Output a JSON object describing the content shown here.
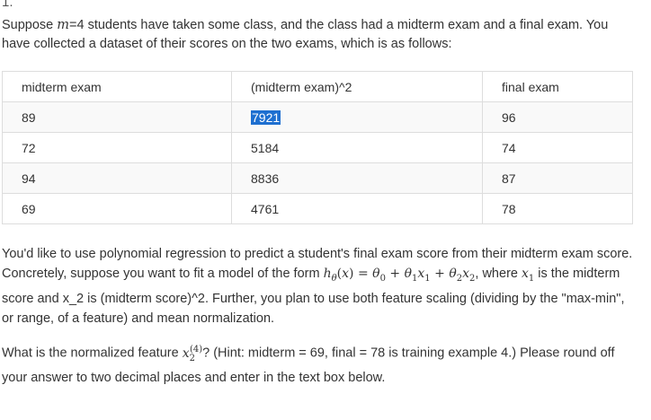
{
  "question": {
    "number": "1.",
    "intro_before_m": "Suppose ",
    "m_var": "m",
    "intro_after_m": "=4 students have taken some class, and the class had a midterm exam and a final exam. You have collected a dataset of their scores on the two exams, which is as follows:"
  },
  "table": {
    "headers": [
      "midterm exam",
      "(midterm exam)^2",
      "final exam"
    ],
    "rows": [
      [
        "89",
        "7921",
        "96"
      ],
      [
        "72",
        "5184",
        "74"
      ],
      [
        "94",
        "8836",
        "87"
      ],
      [
        "69",
        "4761",
        "78"
      ]
    ],
    "highlighted_cell": "7921"
  },
  "paragraph1": {
    "part_a": "You'd like to use polynomial regression to predict a student's final exam score from their midterm exam score. Concretely, suppose you want to fit a model of the form ",
    "part_b": ", where ",
    "part_c": " is the midterm score and x_2 is (midterm score)^2. Further, you plan to use both feature scaling (dividing by the \"max-min\", or range, of a feature) and mean normalization."
  },
  "paragraph2": {
    "part_a": "What is the normalized feature ",
    "part_b": "? (Hint: midterm = 69, final = 78 is training example 4.) Please round off your answer to two decimal places and enter in the text box below."
  }
}
